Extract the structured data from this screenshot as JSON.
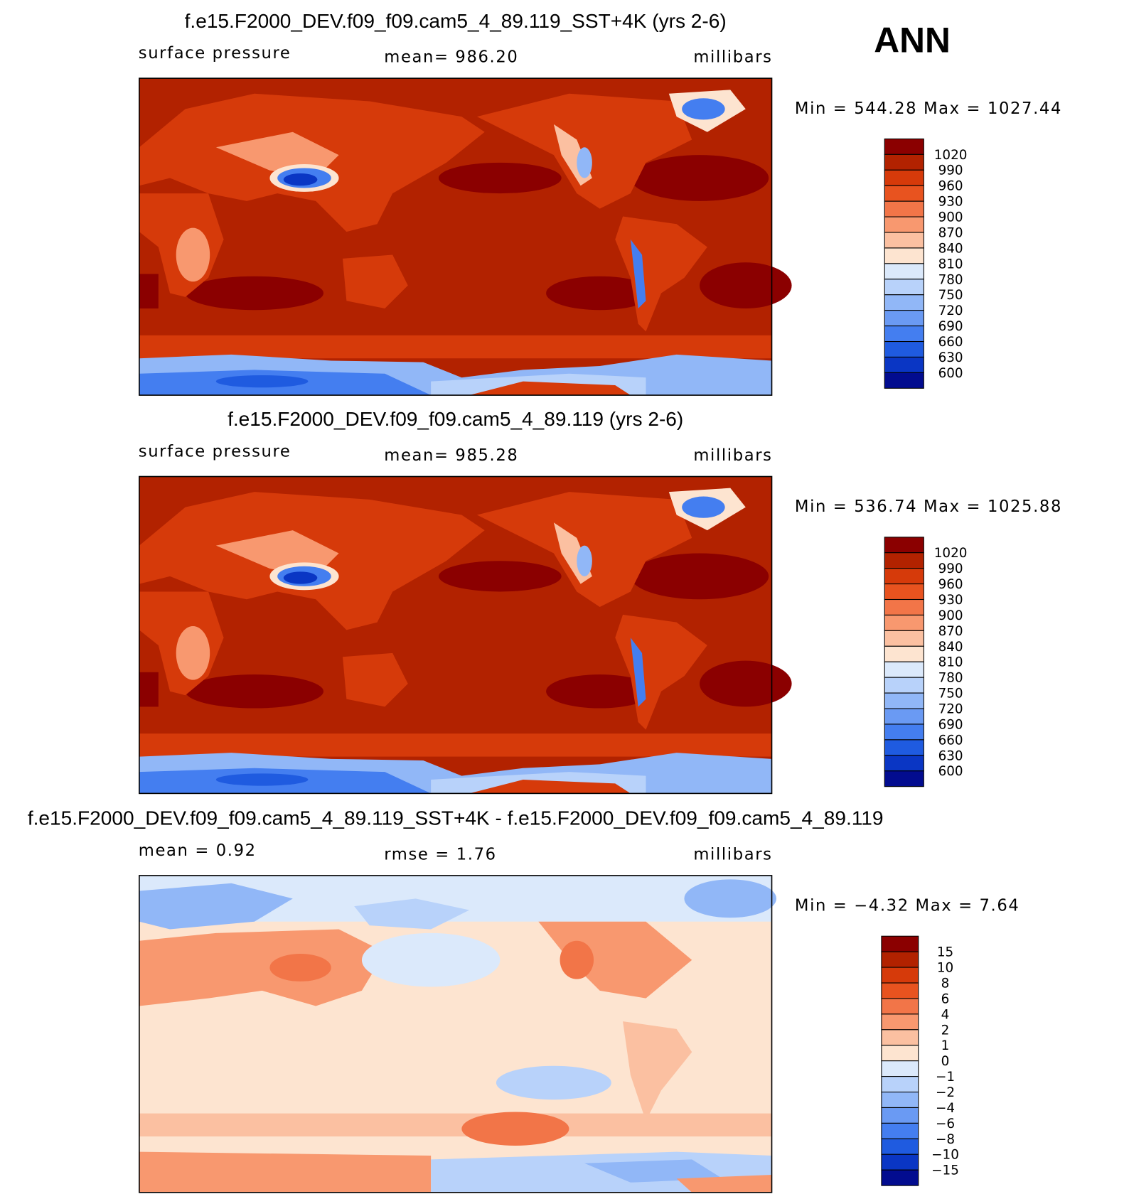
{
  "header": {
    "season": "ANN"
  },
  "panels": [
    {
      "title": "f.e15.F2000_DEV.f09_f09.cam5_4_89.119_SST+4K (yrs 2-6)",
      "variable": "surface pressure",
      "mean": "mean= 986.20",
      "units": "millibars",
      "range": "Min = 544.28 Max = 1027.44",
      "colorbar": {
        "levels": [
          1020,
          990,
          960,
          930,
          900,
          870,
          840,
          810,
          780,
          750,
          720,
          690,
          660,
          630,
          600
        ],
        "colors": [
          "#8b0000",
          "#b22200",
          "#d63a0a",
          "#e8531f",
          "#f27548",
          "#f8986f",
          "#fbc0a1",
          "#fde4d0",
          "#dbe9fb",
          "#b8d2fa",
          "#91b7f7",
          "#6a9af3",
          "#447ef0",
          "#1f5be0",
          "#0a36c4",
          "#020c8f"
        ]
      }
    },
    {
      "title": "f.e15.F2000_DEV.f09_f09.cam5_4_89.119 (yrs 2-6)",
      "variable": "surface pressure",
      "mean": "mean= 985.28",
      "units": "millibars",
      "range": "Min = 536.74 Max = 1025.88",
      "colorbar": {
        "levels": [
          1020,
          990,
          960,
          930,
          900,
          870,
          840,
          810,
          780,
          750,
          720,
          690,
          660,
          630,
          600
        ],
        "colors": [
          "#8b0000",
          "#b22200",
          "#d63a0a",
          "#e8531f",
          "#f27548",
          "#f8986f",
          "#fbc0a1",
          "#fde4d0",
          "#dbe9fb",
          "#b8d2fa",
          "#91b7f7",
          "#6a9af3",
          "#447ef0",
          "#1f5be0",
          "#0a36c4",
          "#020c8f"
        ]
      }
    },
    {
      "title": "f.e15.F2000_DEV.f09_f09.cam5_4_89.119_SST+4K - f.e15.F2000_DEV.f09_f09.cam5_4_89.119",
      "variable": "mean = 0.92",
      "mean": "rmse = 1.76",
      "units": "millibars",
      "range": "Min = −4.32 Max = 7.64",
      "colorbar": {
        "levels": [
          "15",
          "10",
          "8",
          "6",
          "4",
          "2",
          "1",
          "0",
          "−1",
          "−2",
          "−4",
          "−6",
          "−8",
          "−10",
          "−15"
        ],
        "colors": [
          "#8b0000",
          "#b22200",
          "#d63a0a",
          "#e8531f",
          "#f27548",
          "#f8986f",
          "#fbc0a1",
          "#fde4d0",
          "#dbe9fb",
          "#b8d2fa",
          "#91b7f7",
          "#6a9af3",
          "#447ef0",
          "#1f5be0",
          "#0a36c4",
          "#020c8f"
        ]
      }
    }
  ]
}
